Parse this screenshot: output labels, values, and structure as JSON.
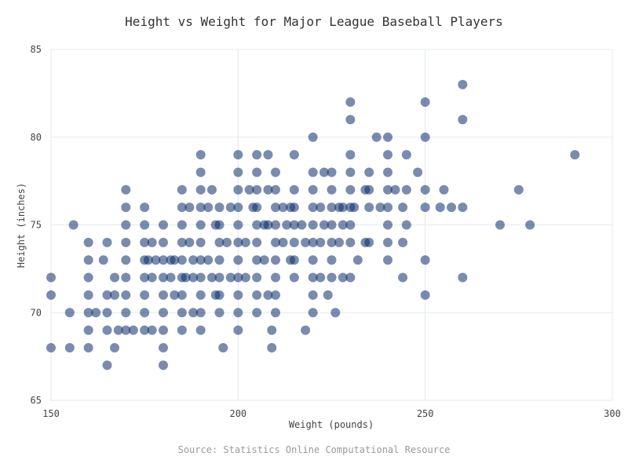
{
  "chart_data": {
    "type": "scatter",
    "title": "Height vs Weight for Major League Baseball Players",
    "xlabel": "Weight (pounds)",
    "ylabel": "Height (inches)",
    "source": "Source: Statistics Online Computational Resource",
    "xlim": [
      150,
      300
    ],
    "ylim": [
      65,
      85
    ],
    "xticks": [
      150,
      200,
      250,
      300
    ],
    "yticks": [
      65,
      70,
      75,
      80,
      85
    ],
    "grid": true,
    "legend": "none",
    "colors": {
      "point": "#0b2e6b",
      "grid": "#e3e8f0",
      "text": "#333333",
      "source": "#9a9a9a"
    },
    "series": [
      {
        "points": [
          [
            150,
            72
          ],
          [
            150,
            71
          ],
          [
            150,
            68
          ],
          [
            155,
            70
          ],
          [
            155,
            68
          ],
          [
            156,
            75
          ],
          [
            160,
            74
          ],
          [
            160,
            73
          ],
          [
            160,
            72
          ],
          [
            160,
            71
          ],
          [
            160,
            70
          ],
          [
            160,
            69
          ],
          [
            160,
            68
          ],
          [
            162,
            70
          ],
          [
            164,
            73
          ],
          [
            165,
            74
          ],
          [
            165,
            71
          ],
          [
            165,
            70
          ],
          [
            165,
            69
          ],
          [
            165,
            67
          ],
          [
            167,
            72
          ],
          [
            167,
            71
          ],
          [
            167,
            68
          ],
          [
            168,
            69
          ],
          [
            170,
            77
          ],
          [
            170,
            76
          ],
          [
            170,
            75
          ],
          [
            170,
            74
          ],
          [
            170,
            73
          ],
          [
            170,
            72
          ],
          [
            170,
            71
          ],
          [
            170,
            70
          ],
          [
            170,
            69
          ],
          [
            172,
            69
          ],
          [
            175,
            76
          ],
          [
            175,
            75
          ],
          [
            175,
            74
          ],
          [
            175,
            73
          ],
          [
            175,
            72
          ],
          [
            175,
            71
          ],
          [
            175,
            70
          ],
          [
            175,
            69
          ],
          [
            176,
            73
          ],
          [
            177,
            74
          ],
          [
            177,
            72
          ],
          [
            177,
            69
          ],
          [
            178,
            73
          ],
          [
            180,
            75
          ],
          [
            180,
            74
          ],
          [
            180,
            73
          ],
          [
            180,
            72
          ],
          [
            180,
            71
          ],
          [
            180,
            70
          ],
          [
            180,
            69
          ],
          [
            180,
            68
          ],
          [
            180,
            67
          ],
          [
            182,
            73
          ],
          [
            182,
            72
          ],
          [
            183,
            73
          ],
          [
            183,
            71
          ],
          [
            185,
            77
          ],
          [
            185,
            76
          ],
          [
            185,
            75
          ],
          [
            185,
            74
          ],
          [
            185,
            73
          ],
          [
            185,
            72
          ],
          [
            185,
            71
          ],
          [
            185,
            70
          ],
          [
            185,
            69
          ],
          [
            186,
            72
          ],
          [
            187,
            76
          ],
          [
            187,
            74
          ],
          [
            188,
            73
          ],
          [
            188,
            72
          ],
          [
            188,
            70
          ],
          [
            190,
            79
          ],
          [
            190,
            78
          ],
          [
            190,
            77
          ],
          [
            190,
            76
          ],
          [
            190,
            75
          ],
          [
            190,
            74
          ],
          [
            190,
            73
          ],
          [
            190,
            72
          ],
          [
            190,
            71
          ],
          [
            190,
            70
          ],
          [
            190,
            69
          ],
          [
            192,
            76
          ],
          [
            192,
            73
          ],
          [
            193,
            77
          ],
          [
            193,
            72
          ],
          [
            194,
            75
          ],
          [
            194,
            71
          ],
          [
            195,
            76
          ],
          [
            195,
            75
          ],
          [
            195,
            74
          ],
          [
            195,
            73
          ],
          [
            195,
            72
          ],
          [
            195,
            71
          ],
          [
            195,
            70
          ],
          [
            196,
            68
          ],
          [
            197,
            74
          ],
          [
            198,
            72
          ],
          [
            198,
            76
          ],
          [
            200,
            79
          ],
          [
            200,
            78
          ],
          [
            200,
            77
          ],
          [
            200,
            76
          ],
          [
            200,
            75
          ],
          [
            200,
            74
          ],
          [
            200,
            73
          ],
          [
            200,
            72
          ],
          [
            200,
            71
          ],
          [
            200,
            70
          ],
          [
            200,
            69
          ],
          [
            202,
            74
          ],
          [
            202,
            72
          ],
          [
            203,
            77
          ],
          [
            204,
            76
          ],
          [
            205,
            79
          ],
          [
            205,
            78
          ],
          [
            205,
            77
          ],
          [
            205,
            76
          ],
          [
            205,
            75
          ],
          [
            205,
            74
          ],
          [
            205,
            73
          ],
          [
            205,
            72
          ],
          [
            205,
            71
          ],
          [
            205,
            70
          ],
          [
            207,
            75
          ],
          [
            207,
            73
          ],
          [
            208,
            79
          ],
          [
            208,
            77
          ],
          [
            208,
            75
          ],
          [
            208,
            71
          ],
          [
            209,
            69
          ],
          [
            209,
            68
          ],
          [
            210,
            78
          ],
          [
            210,
            77
          ],
          [
            210,
            76
          ],
          [
            210,
            75
          ],
          [
            210,
            74
          ],
          [
            210,
            73
          ],
          [
            210,
            72
          ],
          [
            210,
            71
          ],
          [
            210,
            70
          ],
          [
            212,
            76
          ],
          [
            212,
            74
          ],
          [
            213,
            75
          ],
          [
            214,
            76
          ],
          [
            214,
            73
          ],
          [
            215,
            79
          ],
          [
            215,
            77
          ],
          [
            215,
            76
          ],
          [
            215,
            75
          ],
          [
            215,
            74
          ],
          [
            215,
            73
          ],
          [
            215,
            72
          ],
          [
            217,
            75
          ],
          [
            218,
            74
          ],
          [
            218,
            69
          ],
          [
            220,
            80
          ],
          [
            220,
            78
          ],
          [
            220,
            77
          ],
          [
            220,
            76
          ],
          [
            220,
            75
          ],
          [
            220,
            74
          ],
          [
            220,
            73
          ],
          [
            220,
            72
          ],
          [
            220,
            71
          ],
          [
            220,
            70
          ],
          [
            222,
            76
          ],
          [
            222,
            74
          ],
          [
            222,
            72
          ],
          [
            223,
            78
          ],
          [
            223,
            75
          ],
          [
            224,
            71
          ],
          [
            225,
            78
          ],
          [
            225,
            77
          ],
          [
            225,
            76
          ],
          [
            225,
            75
          ],
          [
            225,
            74
          ],
          [
            225,
            73
          ],
          [
            225,
            72
          ],
          [
            226,
            70
          ],
          [
            227,
            76
          ],
          [
            227,
            74
          ],
          [
            228,
            76
          ],
          [
            228,
            75
          ],
          [
            228,
            72
          ],
          [
            230,
            82
          ],
          [
            230,
            81
          ],
          [
            230,
            79
          ],
          [
            230,
            78
          ],
          [
            230,
            77
          ],
          [
            230,
            76
          ],
          [
            230,
            75
          ],
          [
            230,
            74
          ],
          [
            230,
            72
          ],
          [
            231,
            76
          ],
          [
            232,
            73
          ],
          [
            234,
            74
          ],
          [
            234,
            77
          ],
          [
            235,
            78
          ],
          [
            235,
            77
          ],
          [
            235,
            76
          ],
          [
            235,
            74
          ],
          [
            237,
            80
          ],
          [
            238,
            76
          ],
          [
            240,
            80
          ],
          [
            240,
            79
          ],
          [
            240,
            78
          ],
          [
            240,
            77
          ],
          [
            240,
            76
          ],
          [
            240,
            75
          ],
          [
            240,
            74
          ],
          [
            240,
            73
          ],
          [
            242,
            77
          ],
          [
            244,
            76
          ],
          [
            244,
            74
          ],
          [
            244,
            72
          ],
          [
            245,
            79
          ],
          [
            245,
            77
          ],
          [
            245,
            75
          ],
          [
            248,
            78
          ],
          [
            250,
            82
          ],
          [
            250,
            80
          ],
          [
            250,
            77
          ],
          [
            250,
            76
          ],
          [
            250,
            73
          ],
          [
            250,
            71
          ],
          [
            254,
            76
          ],
          [
            255,
            77
          ],
          [
            257,
            76
          ],
          [
            260,
            83
          ],
          [
            260,
            81
          ],
          [
            260,
            76
          ],
          [
            260,
            72
          ],
          [
            270,
            75
          ],
          [
            275,
            77
          ],
          [
            278,
            75
          ],
          [
            290,
            79
          ]
        ]
      }
    ]
  }
}
